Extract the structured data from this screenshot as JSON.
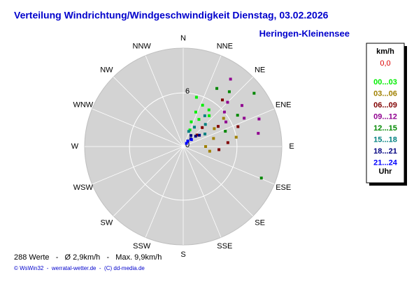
{
  "chart_data": {
    "type": "polar-scatter",
    "title": "Verteilung Windrichtung/Windgeschwindigkeit  Dienstag, 03.02.2026",
    "subtitle": "Heringen-Kleinensee",
    "directions": [
      "N",
      "NNE",
      "NE",
      "ENE",
      "E",
      "ESE",
      "SE",
      "SSE",
      "S",
      "SSW",
      "SW",
      "WSW",
      "W",
      "WNW",
      "NW",
      "NNW"
    ],
    "rlim": [
      0,
      11
    ],
    "rticks": [
      0,
      6
    ],
    "legend_title": "km/h",
    "calm": "0,0",
    "legend_footer": "Uhr",
    "series": [
      {
        "name": "00...03",
        "color": "#00ee00",
        "x": [
          20,
          25,
          18,
          40,
          15,
          30,
          22,
          35
        ],
        "values": [
          4.1,
          5.1,
          2.9,
          4.5,
          5.7,
          3.5,
          2.0,
          5.0
        ]
      },
      {
        "name": "03...06",
        "color": "#a08000",
        "x": [
          60,
          75,
          90,
          100,
          55,
          80
        ],
        "values": [
          4.0,
          3.5,
          2.5,
          3.0,
          5.5,
          6.0
        ]
      },
      {
        "name": "06...09",
        "color": "#800000",
        "x": [
          45,
          60,
          70,
          85,
          50,
          40,
          95
        ],
        "values": [
          3.0,
          4.5,
          6.5,
          5.0,
          2.0,
          6.8,
          4.0
        ]
      },
      {
        "name": "09...12",
        "color": "#900090",
        "x": [
          50,
          55,
          65,
          35,
          70,
          60,
          45,
          80
        ],
        "values": [
          6.0,
          8.0,
          7.5,
          9.2,
          9.0,
          5.5,
          7.0,
          8.5
        ]
      },
      {
        "name": "12...15",
        "color": "#008800",
        "x": [
          53,
          112,
          40,
          60,
          30,
          70
        ],
        "values": [
          9.9,
          9.4,
          8.0,
          7.0,
          7.5,
          5.0
        ]
      },
      {
        "name": "15...18",
        "color": "#008080",
        "x": [
          30,
          45,
          20,
          60,
          35
        ],
        "values": [
          2.5,
          3.5,
          1.8,
          2.8,
          4.2
        ]
      },
      {
        "name": "18...21",
        "color": "#000080",
        "x": [
          45,
          50,
          40,
          55,
          35
        ],
        "values": [
          1.2,
          1.8,
          0.8,
          2.2,
          1.5
        ]
      },
      {
        "name": "21...24",
        "color": "#0000ff",
        "x": [
          40,
          50,
          45
        ],
        "values": [
          0.8,
          1.2,
          0.5
        ]
      }
    ],
    "footer": "288 Werte   -   Ø 2,9km/h   -   Max. 9,9km/h",
    "copyright": "© WsWin32  -  werratal-wetter.de  -  (C) dd-media.de"
  }
}
